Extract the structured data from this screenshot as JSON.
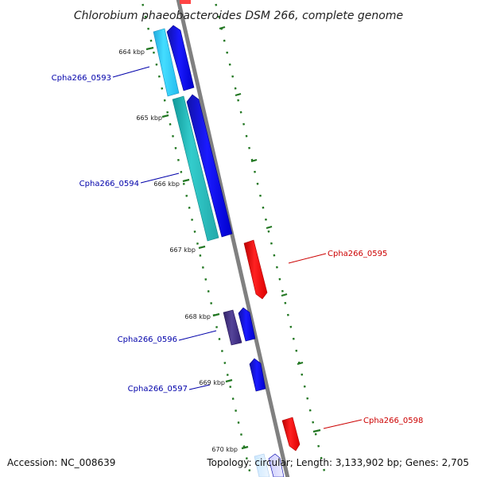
{
  "title": "Chlorobium phaeobacteroides DSM 266, complete genome",
  "footer": {
    "accession": "Accession: NC_008639",
    "topology": "Topology: circular; Length: 3,133,902 bp; Genes: 2,705"
  },
  "scale_labels": [
    "664 kbp",
    "665 kbp",
    "666 kbp",
    "667 kbp",
    "668 kbp",
    "669 kbp",
    "670 kbp"
  ],
  "gene_labels": [
    {
      "name": "Cpha266_0593",
      "strand": "forward"
    },
    {
      "name": "Cpha266_0594",
      "strand": "forward"
    },
    {
      "name": "Cpha266_0595",
      "strand": "reverse"
    },
    {
      "name": "Cpha266_0596",
      "strand": "forward"
    },
    {
      "name": "Cpha266_0597",
      "strand": "forward"
    },
    {
      "name": "Cpha266_0598",
      "strand": "reverse"
    }
  ],
  "colors": {
    "forward_cds": "#0000dd",
    "reverse_cds": "#ff0000",
    "cog_cyan": "#33ccee",
    "cog_teal": "#22bbbb",
    "cog_purple": "#443388",
    "backbone": "#888888",
    "tick": "#227722",
    "forward_label": "#0000aa",
    "reverse_label": "#cc0000"
  }
}
